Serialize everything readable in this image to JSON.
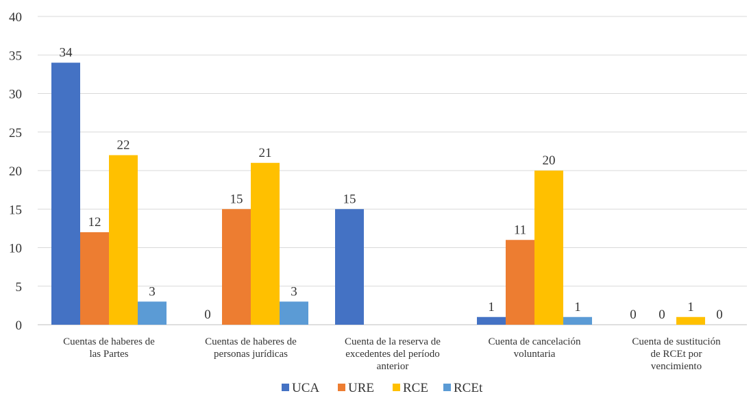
{
  "chart_data": {
    "type": "bar",
    "title": "",
    "xlabel": "",
    "ylabel": "",
    "ylim": [
      0,
      40
    ],
    "yticks": [
      0,
      5,
      10,
      15,
      20,
      25,
      30,
      35,
      40
    ],
    "grid": true,
    "legend_position": "bottom",
    "categories": [
      [
        "Cuentas de haberes de",
        "las Partes"
      ],
      [
        "Cuentas de haberes de",
        "personas jurídicas"
      ],
      [
        "Cuenta de la reserva de",
        "excedentes del período",
        "anterior"
      ],
      [
        "Cuenta de cancelación",
        "voluntaria"
      ],
      [
        "Cuenta de sustitución",
        "de RCEt por",
        "vencimiento"
      ]
    ],
    "series": [
      {
        "name": "UCA",
        "color": "#4472c4",
        "values": [
          34,
          0,
          15,
          1,
          0
        ],
        "labels": [
          "34",
          "0",
          "15",
          "1",
          "0"
        ]
      },
      {
        "name": "URE",
        "color": "#ed7d31",
        "values": [
          12,
          15,
          0,
          11,
          0
        ],
        "labels": [
          "12",
          "15",
          "",
          "11",
          "0"
        ]
      },
      {
        "name": "RCE",
        "color": "#ffc000",
        "values": [
          22,
          21,
          0,
          20,
          1
        ],
        "labels": [
          "22",
          "21",
          "",
          "20",
          "1"
        ]
      },
      {
        "name": "RCEt",
        "color": "#5b9bd5",
        "values": [
          3,
          3,
          0,
          1,
          0
        ],
        "labels": [
          "3",
          "3",
          "",
          "1",
          "0"
        ]
      }
    ]
  }
}
